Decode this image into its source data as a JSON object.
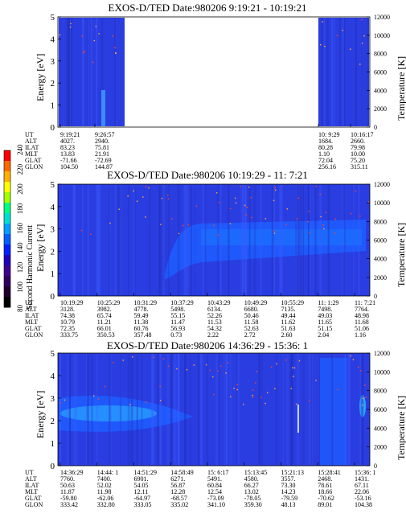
{
  "colorbar": {
    "label": "Second Harmonic Current",
    "ticks": [
      "240",
      "220",
      "200",
      "180",
      "160",
      "140",
      "120",
      "100",
      "80"
    ],
    "colors": [
      "#ff0000",
      "#ff6a00",
      "#ffb000",
      "#ffff00",
      "#a0ff00",
      "#00ff80",
      "#00e0d0",
      "#00a0ff",
      "#0060ff",
      "#0020ff",
      "#2000c0",
      "#400090",
      "#300060",
      "#200030",
      "#000000"
    ]
  },
  "chart_data": [
    {
      "type": "heatmap",
      "title": "EXOS-D/TED   Date:980206  9:19:21 - 10:19:21",
      "ylabel": "Energy [eV]",
      "y2label": "Temperature [K]",
      "ylim": [
        0,
        5
      ],
      "y2lim": [
        0,
        12000
      ],
      "yticks": [
        "0",
        "1",
        "2",
        "3",
        "4",
        "5"
      ],
      "y2ticks": [
        "0",
        "2000",
        "4000",
        "6000",
        "8000",
        "10000",
        "12000"
      ],
      "data_gap": "no data between 9:26:57 and 10: 9:29",
      "orbit_table": {
        "rows": [
          "UT",
          "ALT",
          "ILAT",
          "MLT",
          "GLAT",
          "GLON"
        ],
        "columns": [
          [
            "9:19:21",
            "4027.",
            "83.23",
            "13.83",
            "-71.66",
            "104.50"
          ],
          [
            "9:26:57",
            "2940.",
            "75.81",
            "21.91",
            "-72.69",
            "144.87"
          ],
          [
            "10: 9:29",
            "1684.",
            "80.28",
            "1.10",
            "72.04",
            "256.16"
          ],
          [
            "10:16:17",
            "2660.",
            "79.98",
            "10.00",
            "75.20",
            "315.11"
          ]
        ]
      }
    },
    {
      "type": "heatmap",
      "title": "EXOS-D/TED   Date:980206  10:19:29 - 11: 7:21",
      "ylabel": "Energy [eV]",
      "y2label": "Temperature [K]",
      "ylim": [
        0,
        5
      ],
      "y2lim": [
        0,
        12000
      ],
      "yticks": [
        "0",
        "1",
        "2",
        "3",
        "4",
        "5"
      ],
      "y2ticks": [
        "0",
        "2000",
        "4000",
        "6000",
        "8000",
        "10000",
        "12000"
      ],
      "orbit_table": {
        "rows": [
          "UT",
          "ALT",
          "ILAT",
          "MLT",
          "GLAT",
          "GLON"
        ],
        "columns": [
          [
            "10:19:29",
            "3128.",
            "74.38",
            "10.79",
            "72.35",
            "333.75"
          ],
          [
            "10:25:29",
            "3982.",
            "65.74",
            "11.21",
            "66.01",
            "350.53"
          ],
          [
            "10:31:29",
            "4778.",
            "59.49",
            "11.38",
            "60.76",
            "357.48"
          ],
          [
            "10:37:29",
            "5498.",
            "55.15",
            "11.47",
            "56.93",
            "0.73"
          ],
          [
            "10:43:29",
            "6134.",
            "52.26",
            "11.53",
            "54.32",
            "2.22"
          ],
          [
            "10:49:29",
            "6680.",
            "50.46",
            "11.58",
            "52.63",
            "2.72"
          ],
          [
            "10:55:29",
            "7135.",
            "49.44",
            "11.62",
            "51.63",
            "2.60"
          ],
          [
            "11: 1:29",
            "7498.",
            "49.03",
            "11.65",
            "51.15",
            "2.04"
          ],
          [
            "11: 7:21",
            "7764.",
            "48.98",
            "11.68",
            "51.06",
            "1.16"
          ]
        ]
      }
    },
    {
      "type": "heatmap",
      "title": "EXOS-D/TED   Date:980206  14:36:29 - 15:36: 1",
      "ylabel": "Energy [eV]",
      "y2label": "Temperature [K]",
      "ylim": [
        0,
        5
      ],
      "y2lim": [
        0,
        12000
      ],
      "yticks": [
        "0",
        "1",
        "2",
        "3",
        "4",
        "5"
      ],
      "y2ticks": [
        "0",
        "2000",
        "4000",
        "6000",
        "8000",
        "10000",
        "12000"
      ],
      "orbit_table": {
        "rows": [
          "UT",
          "ALT",
          "ILAT",
          "MLT",
          "GLAT",
          "GLON"
        ],
        "columns": [
          [
            "14:36:29",
            "7760.",
            "50.63",
            "11.87",
            "-59.80",
            "333.42"
          ],
          [
            "14:44: 1",
            "7400.",
            "52.02",
            "11.98",
            "-62.06",
            "332.80"
          ],
          [
            "14:51:29",
            "6901.",
            "54.05",
            "12.11",
            "-64.97",
            "333.05"
          ],
          [
            "14:58:49",
            "6271.",
            "56.87",
            "12.28",
            "-68.57",
            "335.02"
          ],
          [
            "15: 6:17",
            "5491.",
            "60.84",
            "12.54",
            "-73.09",
            "341.10"
          ],
          [
            "15:13:45",
            "4580.",
            "66.27",
            "13.02",
            "-78.05",
            "359.30"
          ],
          [
            "15:21:13",
            "3557.",
            "73.30",
            "14.23",
            "-79.59",
            "48.13"
          ],
          [
            "15:28:41",
            "2468.",
            "78.61",
            "18.66",
            "-70.62",
            "89.01"
          ],
          [
            "15:36: 1",
            "1431.",
            "67.11",
            "22.06",
            "-53.16",
            "104.38"
          ]
        ]
      }
    }
  ]
}
